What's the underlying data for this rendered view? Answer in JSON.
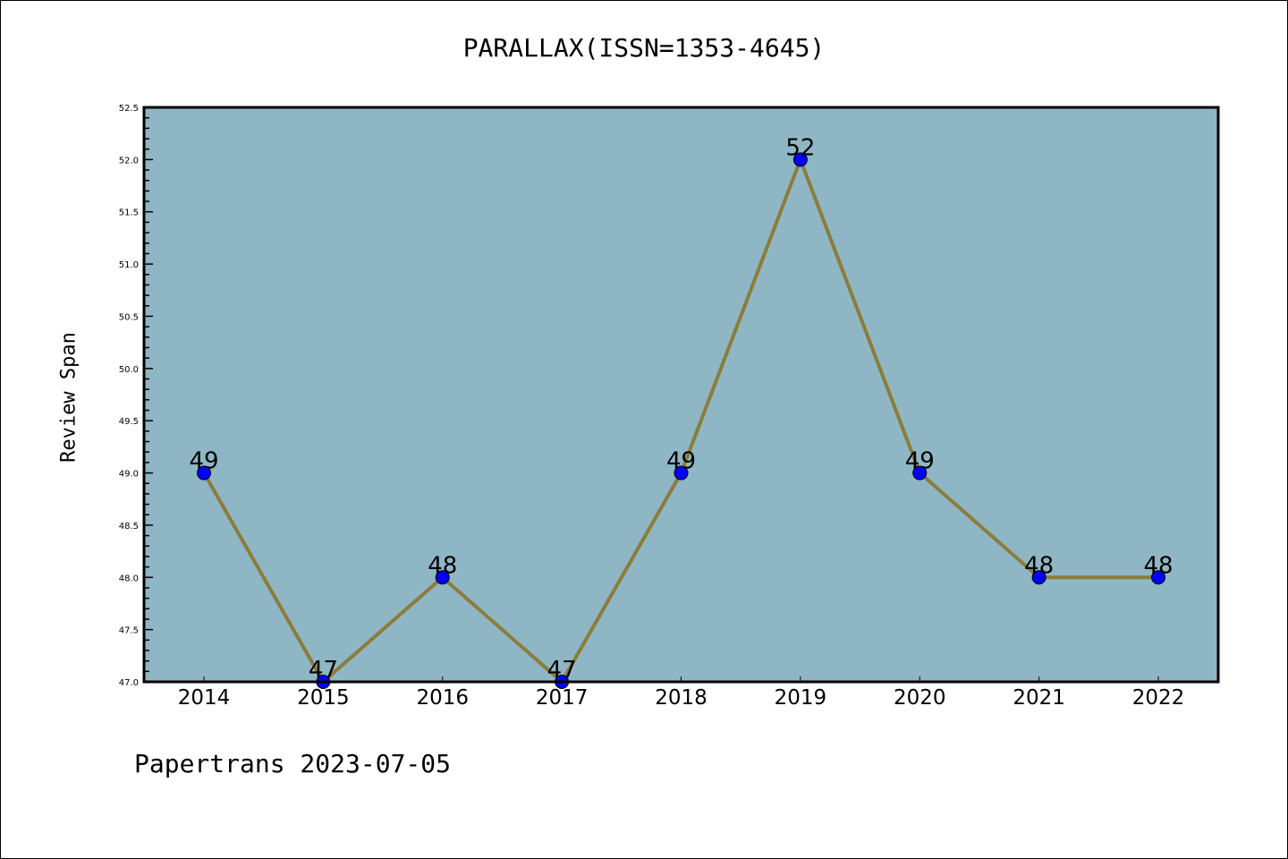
{
  "chart_data": {
    "type": "line",
    "title": "PARALLAX(ISSN=1353-4645)",
    "xlabel": "",
    "ylabel": "Review Span",
    "categories": [
      "2014",
      "2015",
      "2016",
      "2017",
      "2018",
      "2019",
      "2020",
      "2021",
      "2022"
    ],
    "values": [
      49,
      47,
      48,
      47,
      49,
      52,
      49,
      48,
      48
    ],
    "data_labels": [
      "49",
      "47",
      "48",
      "47",
      "49",
      "52",
      "49",
      "48",
      "48"
    ],
    "ylim": [
      47.0,
      52.5
    ],
    "yticks": [
      "47.0",
      "47.5",
      "48.0",
      "48.5",
      "49.0",
      "49.5",
      "50.0",
      "50.5",
      "51.0",
      "51.5",
      "52.0",
      "52.5"
    ],
    "grid": false,
    "colors": {
      "plot_bg": "#8fb6c4",
      "line": "#8b7d38",
      "marker": "#0000ff"
    }
  },
  "footer": "Papertrans 2023-07-05"
}
